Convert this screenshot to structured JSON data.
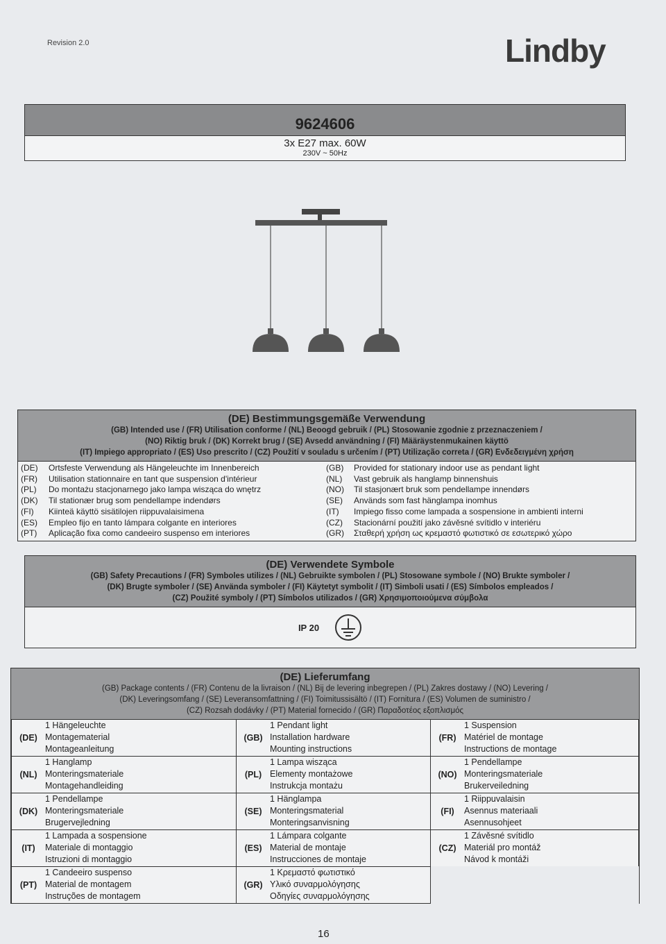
{
  "header": {
    "revision": "Revision 2.0",
    "brand": "Lindby"
  },
  "product": {
    "number": "9624606",
    "spec": "3x E27 max. 60W",
    "power": "230V ~ 50Hz"
  },
  "intended_use": {
    "title": "(DE) Bestimmungsgemäße Verwendung",
    "subtitles": [
      "(GB) Intended use / (FR) Utilisation conforme / (NL) Beoogd gebruik / (PL) Stosowanie zgodnie z przeznaczeniem /",
      "(NO) Riktig bruk / (DK) Korrekt brug / (SE) Avsedd användning / (FI) Määräystenmukainen käyttö",
      "(IT) Impiego appropriato / (ES) Uso prescrito / (CZ) Použití v souladu s určením / (PT) Utilização correta / (GR) Ενδεδειγμένη χρήση"
    ],
    "rows": [
      {
        "c1": "(DE)",
        "t1": "Ortsfeste Verwendung als Hängeleuchte im Innenbereich",
        "c2": "(GB)",
        "t2": "Provided for stationary indoor use as pendant light"
      },
      {
        "c1": "(FR)",
        "t1": "Utilisation stationnaire en tant que suspension d'intérieur",
        "c2": "(NL)",
        "t2": "Vast gebruik als hanglamp binnenshuis"
      },
      {
        "c1": "(PL)",
        "t1": "Do montażu stacjonarnego jako lampa wisząca do wnętrz",
        "c2": "(NO)",
        "t2": "Til stasjonært bruk som pendellampe innendørs"
      },
      {
        "c1": "(DK)",
        "t1": "Til stationær brug som pendellampe indendørs",
        "c2": "(SE)",
        "t2": "Används som fast hänglampa inomhus"
      },
      {
        "c1": "(FI)",
        "t1": "Kiinteä käyttö sisätilojen riippuvalaisimena",
        "c2": "(IT)",
        "t2": "Impiego fisso come lampada a sospensione in ambienti interni"
      },
      {
        "c1": "(ES)",
        "t1": "Empleo fijo en tanto lámpara colgante en interiores",
        "c2": "(CZ)",
        "t2": "Stacionární použití jako závěsné svítidlo v interiéru"
      },
      {
        "c1": "(PT)",
        "t1": "Aplicação fixa como candeeiro suspenso em interiores",
        "c2": "(GR)",
        "t2": "Σταθερή χρήση ως κρεμαστό φωτιστικό σε εσωτερικό χώρο"
      }
    ]
  },
  "symbols": {
    "title": "(DE) Verwendete Symbole",
    "subtitles": [
      "(GB) Safety Precautions / (FR) Symboles utilizes / (NL) Gebruikte symbolen / (PL) Stosowane symbole / (NO) Brukte symboler /",
      "(DK) Brugte symboler / (SE) Använda symboler / (FI) Käytetyt symbolit / (IT) Simboli usati / (ES) Símbolos empleados /",
      "(CZ) Použité symboly / (PT) Símbolos utilizados / (GR) Χρησιμοποιούμενα σύμβολα"
    ],
    "ip": "IP 20",
    "icon": "protective-earth"
  },
  "package": {
    "title": "(DE) Lieferumfang",
    "subtitles": [
      "(GB) Package contents / (FR)  Contenu de la livraison / (NL) Bij de levering inbegrepen / (PL) Zakres dostawy / (NO) Levering /",
      "(DK) Leveringsomfang / (SE) Leveransomfattning / (FI) Toimitussisältö / (IT) Fornitura / (ES) Volumen de suministro /",
      "(CZ) Rozsah dodávky / (PT) Material fornecido / (GR) Παραδοτέος εξοπλισμός"
    ],
    "cells": [
      {
        "code": "(DE)",
        "items": [
          "1 Hängeleuchte",
          "Montagematerial",
          "Montageanleitung"
        ]
      },
      {
        "code": "(GB)",
        "items": [
          "1 Pendant light",
          "Installation hardware",
          "Mounting instructions"
        ]
      },
      {
        "code": "(FR)",
        "items": [
          "1 Suspension",
          "Matériel de montage",
          "Instructions de montage"
        ]
      },
      {
        "code": "(NL)",
        "items": [
          "1 Hanglamp",
          "Monteringsmateriale",
          "Montagehandleiding"
        ]
      },
      {
        "code": "(PL)",
        "items": [
          "1 Lampa wisząca",
          "Elementy montażowe",
          "Instrukcja montażu"
        ]
      },
      {
        "code": "(NO)",
        "items": [
          "1 Pendellampe",
          "Monteringsmateriale",
          "Brukerveiledning"
        ]
      },
      {
        "code": "(DK)",
        "items": [
          "1 Pendellampe",
          "Monteringsmateriale",
          "Brugervejledning"
        ]
      },
      {
        "code": "(SE)",
        "items": [
          "1 Hänglampa",
          "Monteringsmaterial",
          "Monteringsanvisning"
        ]
      },
      {
        "code": "(FI)",
        "items": [
          "1 Riippuvalaisin",
          "Asennus materiaali",
          "Asennusohjeet"
        ]
      },
      {
        "code": "(IT)",
        "items": [
          "1 Lampada a sospensione",
          "Materiale di montaggio",
          "Istruzioni di montaggio"
        ]
      },
      {
        "code": "(ES)",
        "items": [
          "1 Lámpara colgante",
          "Material de montaje",
          "Instrucciones de montaje"
        ]
      },
      {
        "code": "(CZ)",
        "items": [
          "1 Závěsné svítidlo",
          "Materiál pro montáž",
          "Návod k montáži"
        ]
      },
      {
        "code": "(PT)",
        "items": [
          "1 Candeeiro suspenso",
          "Material de montagem",
          "Instruções de montagem"
        ]
      },
      {
        "code": "(GR)",
        "items": [
          "1 Κρεμαστό φωτιστικό",
          "Υλικό συναρμολόγησης",
          "Οδηγίες συναρμολόγησης"
        ]
      }
    ]
  },
  "page_number": "16"
}
